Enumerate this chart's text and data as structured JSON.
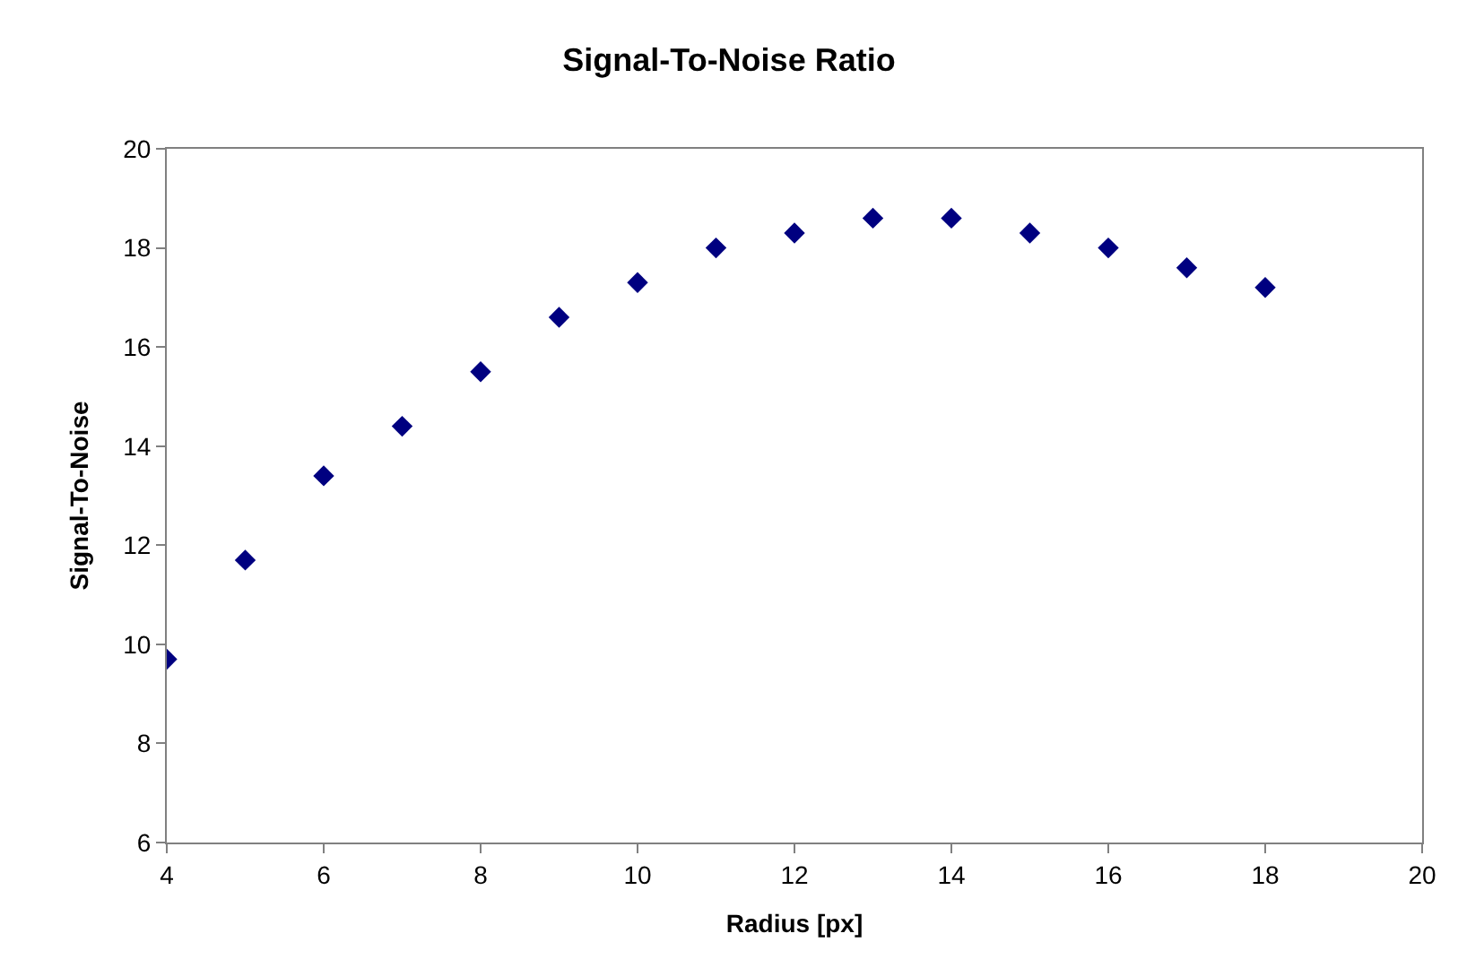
{
  "chart_data": {
    "type": "scatter",
    "title": "Signal-To-Noise Ratio",
    "xlabel": "Radius [px]",
    "ylabel": "Signal-To-Noise",
    "x": [
      4,
      5,
      6,
      7,
      8,
      9,
      10,
      11,
      12,
      13,
      14,
      15,
      16,
      17,
      18
    ],
    "series": [
      {
        "color": "#000080",
        "values": [
          9.7,
          11.7,
          13.4,
          14.4,
          15.5,
          16.6,
          17.3,
          18.0,
          18.3,
          18.6,
          18.6,
          18.3,
          18.0,
          17.6,
          17.2
        ]
      }
    ],
    "xlim": [
      4,
      20
    ],
    "xticks": [
      4,
      6,
      8,
      10,
      12,
      14,
      16,
      18,
      20
    ],
    "ylim": [
      6,
      20
    ],
    "yticks": [
      6,
      8,
      10,
      12,
      14,
      16,
      18,
      20
    ],
    "marker": "diamond"
  }
}
